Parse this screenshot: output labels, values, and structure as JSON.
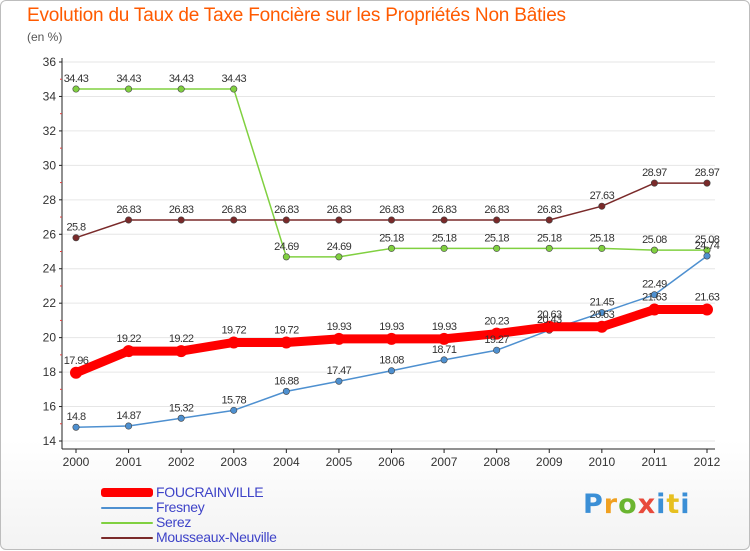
{
  "title": "Evolution du Taux de Taxe Foncière sur les Propriétés Non Bâties",
  "unit": "(en %)",
  "brand": {
    "p": "P",
    "r": "r",
    "o": "o",
    "x": "x",
    "i": "i",
    "t": "t",
    "i2": "i"
  },
  "chart_data": {
    "type": "line",
    "title": "Evolution du Taux de Taxe Foncière sur les Propriétés Non Bâties",
    "ylabel": "(en %)",
    "xlabel": "",
    "ylim": [
      14,
      36
    ],
    "yticks": [
      14,
      16,
      18,
      20,
      22,
      24,
      26,
      28,
      30,
      32,
      34,
      36
    ],
    "categories": [
      "2000",
      "2001",
      "2002",
      "2003",
      "2004",
      "2005",
      "2006",
      "2007",
      "2008",
      "2009",
      "2010",
      "2011",
      "2012"
    ],
    "series": [
      {
        "name": "FOUCRAINVILLE",
        "color": "#ff0000",
        "values": [
          17.96,
          19.22,
          19.22,
          19.72,
          19.72,
          19.93,
          19.93,
          19.93,
          20.23,
          20.63,
          20.63,
          21.63,
          21.63
        ],
        "labels": [
          "17.96",
          "19.22",
          "19.22",
          "19.72",
          "19.72",
          "19.93",
          "19.93",
          "19.93",
          "20.23",
          "20.63",
          "20.63",
          "21.63",
          "21.63"
        ]
      },
      {
        "name": "Fresney",
        "color": "#4e90d0",
        "values": [
          14.8,
          14.87,
          15.32,
          15.78,
          16.88,
          17.47,
          18.08,
          18.71,
          19.27,
          20.43,
          21.45,
          22.49,
          24.74
        ],
        "labels": [
          "14.8",
          "14.87",
          "15.32",
          "15.78",
          "16.88",
          "17.47",
          "18.08",
          "18.71",
          "19.27",
          "20.43",
          "21.45",
          "22.49",
          "24.74"
        ]
      },
      {
        "name": "Serez",
        "color": "#80d040",
        "values": [
          34.43,
          34.43,
          34.43,
          34.43,
          24.69,
          24.69,
          25.18,
          25.18,
          25.18,
          25.18,
          25.18,
          25.08,
          25.08
        ],
        "labels": [
          "34.43",
          "34.43",
          "34.43",
          "34.43",
          "24.69",
          "24.69",
          "25.18",
          "25.18",
          "25.18",
          "25.18",
          "25.18",
          "25.08",
          "25.08"
        ]
      },
      {
        "name": "Mousseaux-Neuville",
        "color": "#7a2a2a",
        "values": [
          25.8,
          26.83,
          26.83,
          26.83,
          26.83,
          26.83,
          26.83,
          26.83,
          26.83,
          26.83,
          27.63,
          28.97,
          28.97
        ],
        "labels": [
          "25.8",
          "26.83",
          "26.83",
          "26.83",
          "26.83",
          "26.83",
          "26.83",
          "26.83",
          "26.83",
          "26.83",
          "27.63",
          "28.97",
          "28.97"
        ]
      }
    ],
    "legend": "bottom-left"
  }
}
